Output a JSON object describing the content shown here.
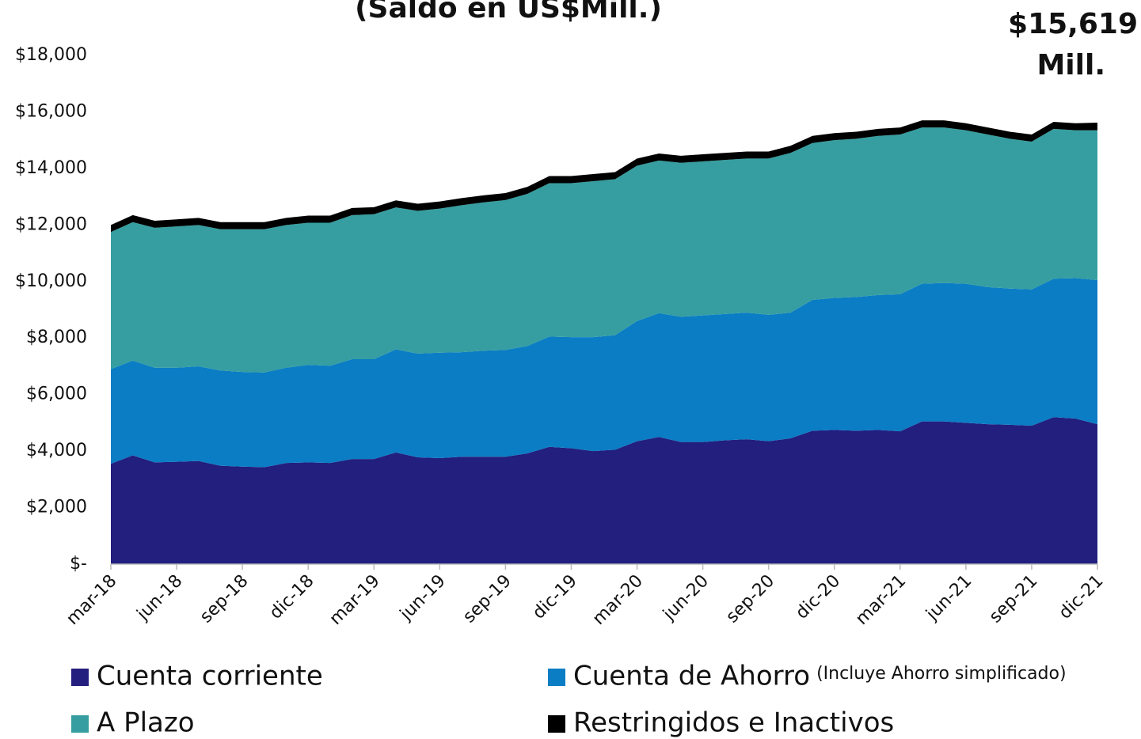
{
  "chart_data": {
    "type": "stacked_area",
    "title": "(Saldo en US$Mill.)",
    "annotation": [
      "$15,619",
      "Mill."
    ],
    "categories": [
      "mar-18",
      null,
      null,
      "jun-18",
      null,
      null,
      "sep-18",
      null,
      null,
      "dic-18",
      null,
      null,
      "mar-19",
      null,
      null,
      "jun-19",
      null,
      null,
      "sep-19",
      null,
      null,
      "dic-19",
      null,
      null,
      "mar-20",
      null,
      null,
      "jun-20",
      null,
      null,
      "sep-20",
      null,
      null,
      "dic-20",
      null,
      null,
      "mar-21",
      null,
      null,
      "jun-21",
      null,
      null,
      "sep-21",
      null,
      null,
      "dic-21"
    ],
    "series": [
      {
        "name": "Cuenta corriente",
        "color": "#221f7f",
        "values": [
          3550,
          3850,
          3600,
          3620,
          3650,
          3480,
          3450,
          3430,
          3580,
          3600,
          3580,
          3720,
          3720,
          3950,
          3780,
          3750,
          3800,
          3800,
          3800,
          3920,
          4150,
          4100,
          4000,
          4050,
          4350,
          4500,
          4320,
          4320,
          4380,
          4420,
          4350,
          4450,
          4720,
          4750,
          4720,
          4750,
          4700,
          5050,
          5050,
          5000,
          4950,
          4930,
          4900,
          5200,
          5150,
          4950
        ]
      },
      {
        "name": "Cuenta de Ahorro",
        "note": "(Incluye Ahorro simplificado)",
        "color": "#0a7dc4",
        "values": [
          3350,
          3350,
          3350,
          3330,
          3350,
          3370,
          3350,
          3350,
          3370,
          3450,
          3440,
          3530,
          3530,
          3650,
          3670,
          3730,
          3700,
          3750,
          3780,
          3800,
          3900,
          3930,
          4030,
          4050,
          4250,
          4380,
          4430,
          4480,
          4470,
          4480,
          4470,
          4450,
          4630,
          4670,
          4730,
          4770,
          4850,
          4870,
          4900,
          4920,
          4850,
          4820,
          4820,
          4900,
          4970,
          5100
        ]
      },
      {
        "name": "A Plazo",
        "color": "#369ea0",
        "values": [
          4850,
          4900,
          4950,
          5000,
          5000,
          5000,
          5050,
          5070,
          5050,
          5030,
          5060,
          5100,
          5130,
          5020,
          5050,
          5100,
          5200,
          5250,
          5300,
          5380,
          5430,
          5450,
          5520,
          5520,
          5500,
          5400,
          5450,
          5450,
          5450,
          5450,
          5530,
          5650,
          5550,
          5580,
          5600,
          5630,
          5650,
          5530,
          5500,
          5430,
          5400,
          5300,
          5230,
          5300,
          5230,
          5300
        ]
      },
      {
        "name": "Restringidos e Inactivos",
        "color": "#000000",
        "values": [
          250,
          250,
          250,
          250,
          250,
          250,
          250,
          250,
          250,
          250,
          250,
          250,
          250,
          250,
          250,
          250,
          250,
          250,
          250,
          250,
          250,
          250,
          250,
          250,
          250,
          250,
          250,
          250,
          250,
          250,
          250,
          250,
          250,
          250,
          250,
          250,
          250,
          250,
          250,
          250,
          250,
          250,
          250,
          250,
          250,
          269
        ]
      }
    ],
    "ylim": [
      0,
      18000
    ],
    "yticks": [
      {
        "value": 0,
        "label": "$-"
      },
      {
        "value": 2000,
        "label": "$2,000"
      },
      {
        "value": 4000,
        "label": "$4,000"
      },
      {
        "value": 6000,
        "label": "$6,000"
      },
      {
        "value": 8000,
        "label": "$8,000"
      },
      {
        "value": 10000,
        "label": "$10,000"
      },
      {
        "value": 12000,
        "label": "$12,000"
      },
      {
        "value": 14000,
        "label": "$14,000"
      },
      {
        "value": 16000,
        "label": "$16,000"
      },
      {
        "value": 18000,
        "label": "$18,000"
      }
    ],
    "grid": false
  }
}
